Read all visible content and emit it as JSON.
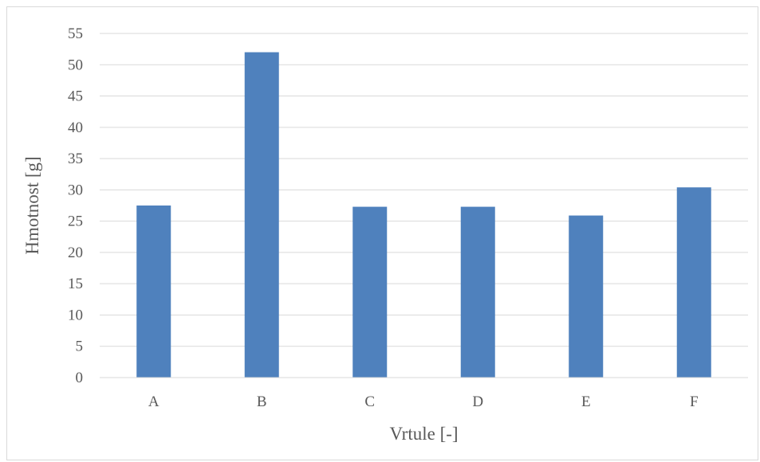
{
  "chart_data": {
    "type": "bar",
    "categories": [
      "A",
      "B",
      "C",
      "D",
      "E",
      "F"
    ],
    "values": [
      27.5,
      52.0,
      27.3,
      27.3,
      25.9,
      30.4
    ],
    "xlabel": "Vrtule [-]",
    "ylabel": "Hmotnost [g]",
    "ylim": [
      0,
      55
    ],
    "yticks": [
      0,
      5,
      10,
      15,
      20,
      25,
      30,
      35,
      40,
      45,
      50,
      55
    ],
    "grid": true,
    "legend": "none",
    "bar_color": "#4f81bd",
    "grid_color": "#d9d9d9"
  }
}
